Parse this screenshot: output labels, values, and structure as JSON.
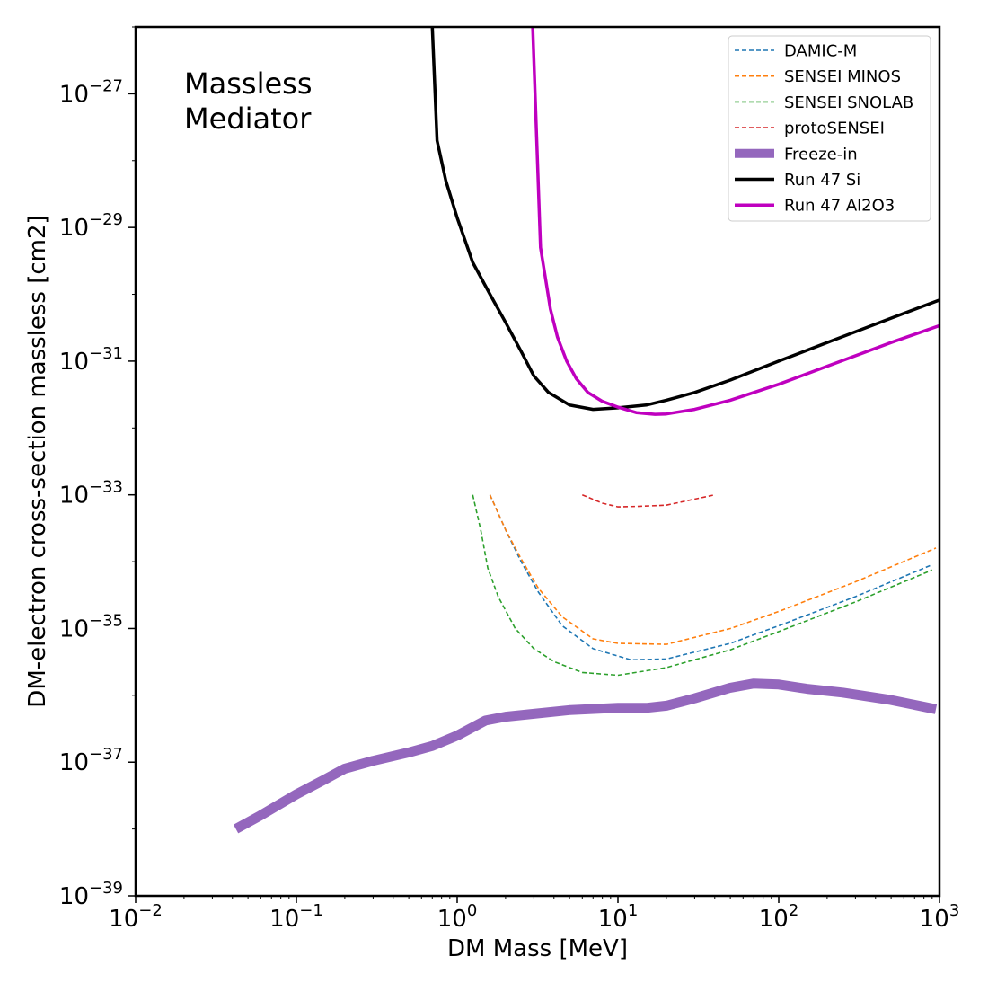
{
  "chart_data": {
    "type": "line",
    "title": "",
    "annotation": [
      "Massless",
      "Mediator"
    ],
    "xlabel": "DM Mass [MeV]",
    "ylabel": "DM-electron cross-section massless [cm2]",
    "xscale": "log",
    "yscale": "log",
    "xlim": [
      0.01,
      1000
    ],
    "ylim": [
      1e-39,
      1e-26
    ],
    "x_ticks": [
      {
        "base": "10",
        "exp": "−2",
        "value": 0.01
      },
      {
        "base": "10",
        "exp": "−1",
        "value": 0.1
      },
      {
        "base": "10",
        "exp": "0",
        "value": 1
      },
      {
        "base": "10",
        "exp": "1",
        "value": 10
      },
      {
        "base": "10",
        "exp": "2",
        "value": 100
      },
      {
        "base": "10",
        "exp": "3",
        "value": 1000
      }
    ],
    "y_ticks": [
      {
        "base": "10",
        "exp": "−27",
        "value": 1e-27
      },
      {
        "base": "10",
        "exp": "−29",
        "value": 1e-29
      },
      {
        "base": "10",
        "exp": "−31",
        "value": 1e-31
      },
      {
        "base": "10",
        "exp": "−33",
        "value": 1e-33
      },
      {
        "base": "10",
        "exp": "−35",
        "value": 1e-35
      },
      {
        "base": "10",
        "exp": "−37",
        "value": 1e-37
      },
      {
        "base": "10",
        "exp": "−39",
        "value": 1e-39
      }
    ],
    "grid": false,
    "legend_position": "top-right",
    "series": [
      {
        "name": "DAMIC-M",
        "color": "#1f77b4",
        "style": "dashed",
        "x": [
          1.6,
          2.0,
          2.5,
          3.2,
          4.5,
          7,
          12,
          20,
          50,
          100,
          300,
          900
        ],
        "y": [
          1e-33,
          3e-34,
          1e-34,
          3.5e-35,
          1.1e-35,
          5e-36,
          3.4e-36,
          3.5e-36,
          6e-36,
          1.1e-35,
          3e-35,
          9e-35
        ]
      },
      {
        "name": "SENSEI MINOS",
        "color": "#ff7f0e",
        "style": "dashed",
        "x": [
          1.6,
          2.0,
          2.5,
          3.2,
          4.5,
          7,
          10,
          20,
          50,
          100,
          300,
          950
        ],
        "y": [
          1e-33,
          3e-34,
          1.1e-34,
          4e-35,
          1.5e-35,
          7e-36,
          6e-36,
          5.8e-36,
          1e-35,
          1.8e-35,
          5e-35,
          1.6e-34
        ]
      },
      {
        "name": "SENSEI SNOLAB",
        "color": "#2ca02c",
        "style": "dashed",
        "x": [
          1.25,
          1.4,
          1.55,
          1.8,
          2.3,
          3,
          4,
          6,
          10,
          20,
          50,
          100,
          300,
          900
        ],
        "y": [
          1e-33,
          3e-34,
          8e-35,
          3e-35,
          1e-35,
          5e-36,
          3.2e-36,
          2.2e-36,
          2e-36,
          2.6e-36,
          4.8e-36,
          9e-36,
          2.5e-35,
          7.5e-35
        ]
      },
      {
        "name": "protoSENSEI",
        "color": "#d62728",
        "style": "dashed",
        "x": [
          6,
          8,
          10,
          13,
          20,
          40
        ],
        "y": [
          1e-33,
          7.5e-34,
          6.6e-34,
          6.7e-34,
          7e-34,
          1e-33
        ]
      },
      {
        "name": "Freeze-in",
        "color": "#9467bd",
        "style": "thick",
        "x": [
          0.042,
          0.06,
          0.1,
          0.15,
          0.2,
          0.3,
          0.5,
          0.7,
          1.0,
          1.5,
          2,
          3,
          5,
          10,
          15,
          20,
          30,
          50,
          70,
          100,
          150,
          250,
          500,
          950
        ],
        "y": [
          1e-38,
          1.6e-38,
          3.3e-38,
          5.5e-38,
          8e-38,
          1.05e-37,
          1.4e-37,
          1.75e-37,
          2.5e-37,
          4.2e-37,
          4.8e-37,
          5.3e-37,
          6e-37,
          6.5e-37,
          6.5e-37,
          7e-37,
          9e-37,
          1.3e-36,
          1.5e-36,
          1.45e-36,
          1.25e-36,
          1.1e-36,
          8.5e-37,
          6.2e-37
        ]
      },
      {
        "name": "Run 47 Si",
        "color": "#000000",
        "style": "solid",
        "x": [
          0.7,
          0.75,
          0.85,
          1.0,
          1.25,
          1.6,
          2.0,
          2.5,
          3.0,
          3.7,
          5,
          7,
          10,
          15,
          20,
          30,
          50,
          100,
          200,
          500,
          1000
        ],
        "y": [
          1e-26,
          2e-28,
          5e-29,
          1.4e-29,
          3e-30,
          1e-30,
          3.8e-31,
          1.4e-31,
          6e-32,
          3.4e-32,
          2.2e-32,
          1.9e-32,
          2e-32,
          2.2e-32,
          2.6e-32,
          3.4e-32,
          5.2e-32,
          1e-31,
          1.9e-31,
          4.4e-31,
          8.2e-31
        ]
      },
      {
        "name": "Run 47 Al2O3",
        "color": "#bf00bf",
        "style": "solid",
        "x": [
          2.95,
          3.3,
          3.8,
          4.2,
          4.8,
          5.5,
          6.5,
          8,
          10,
          13,
          17,
          20,
          30,
          50,
          100,
          200,
          500,
          1000
        ],
        "y": [
          1e-26,
          5e-30,
          6e-31,
          2.3e-31,
          1e-31,
          5.5e-32,
          3.4e-32,
          2.5e-32,
          2.05e-32,
          1.7e-32,
          1.6e-32,
          1.62e-32,
          1.9e-32,
          2.6e-32,
          4.5e-32,
          8.4e-32,
          1.9e-31,
          3.4e-31
        ]
      }
    ]
  }
}
